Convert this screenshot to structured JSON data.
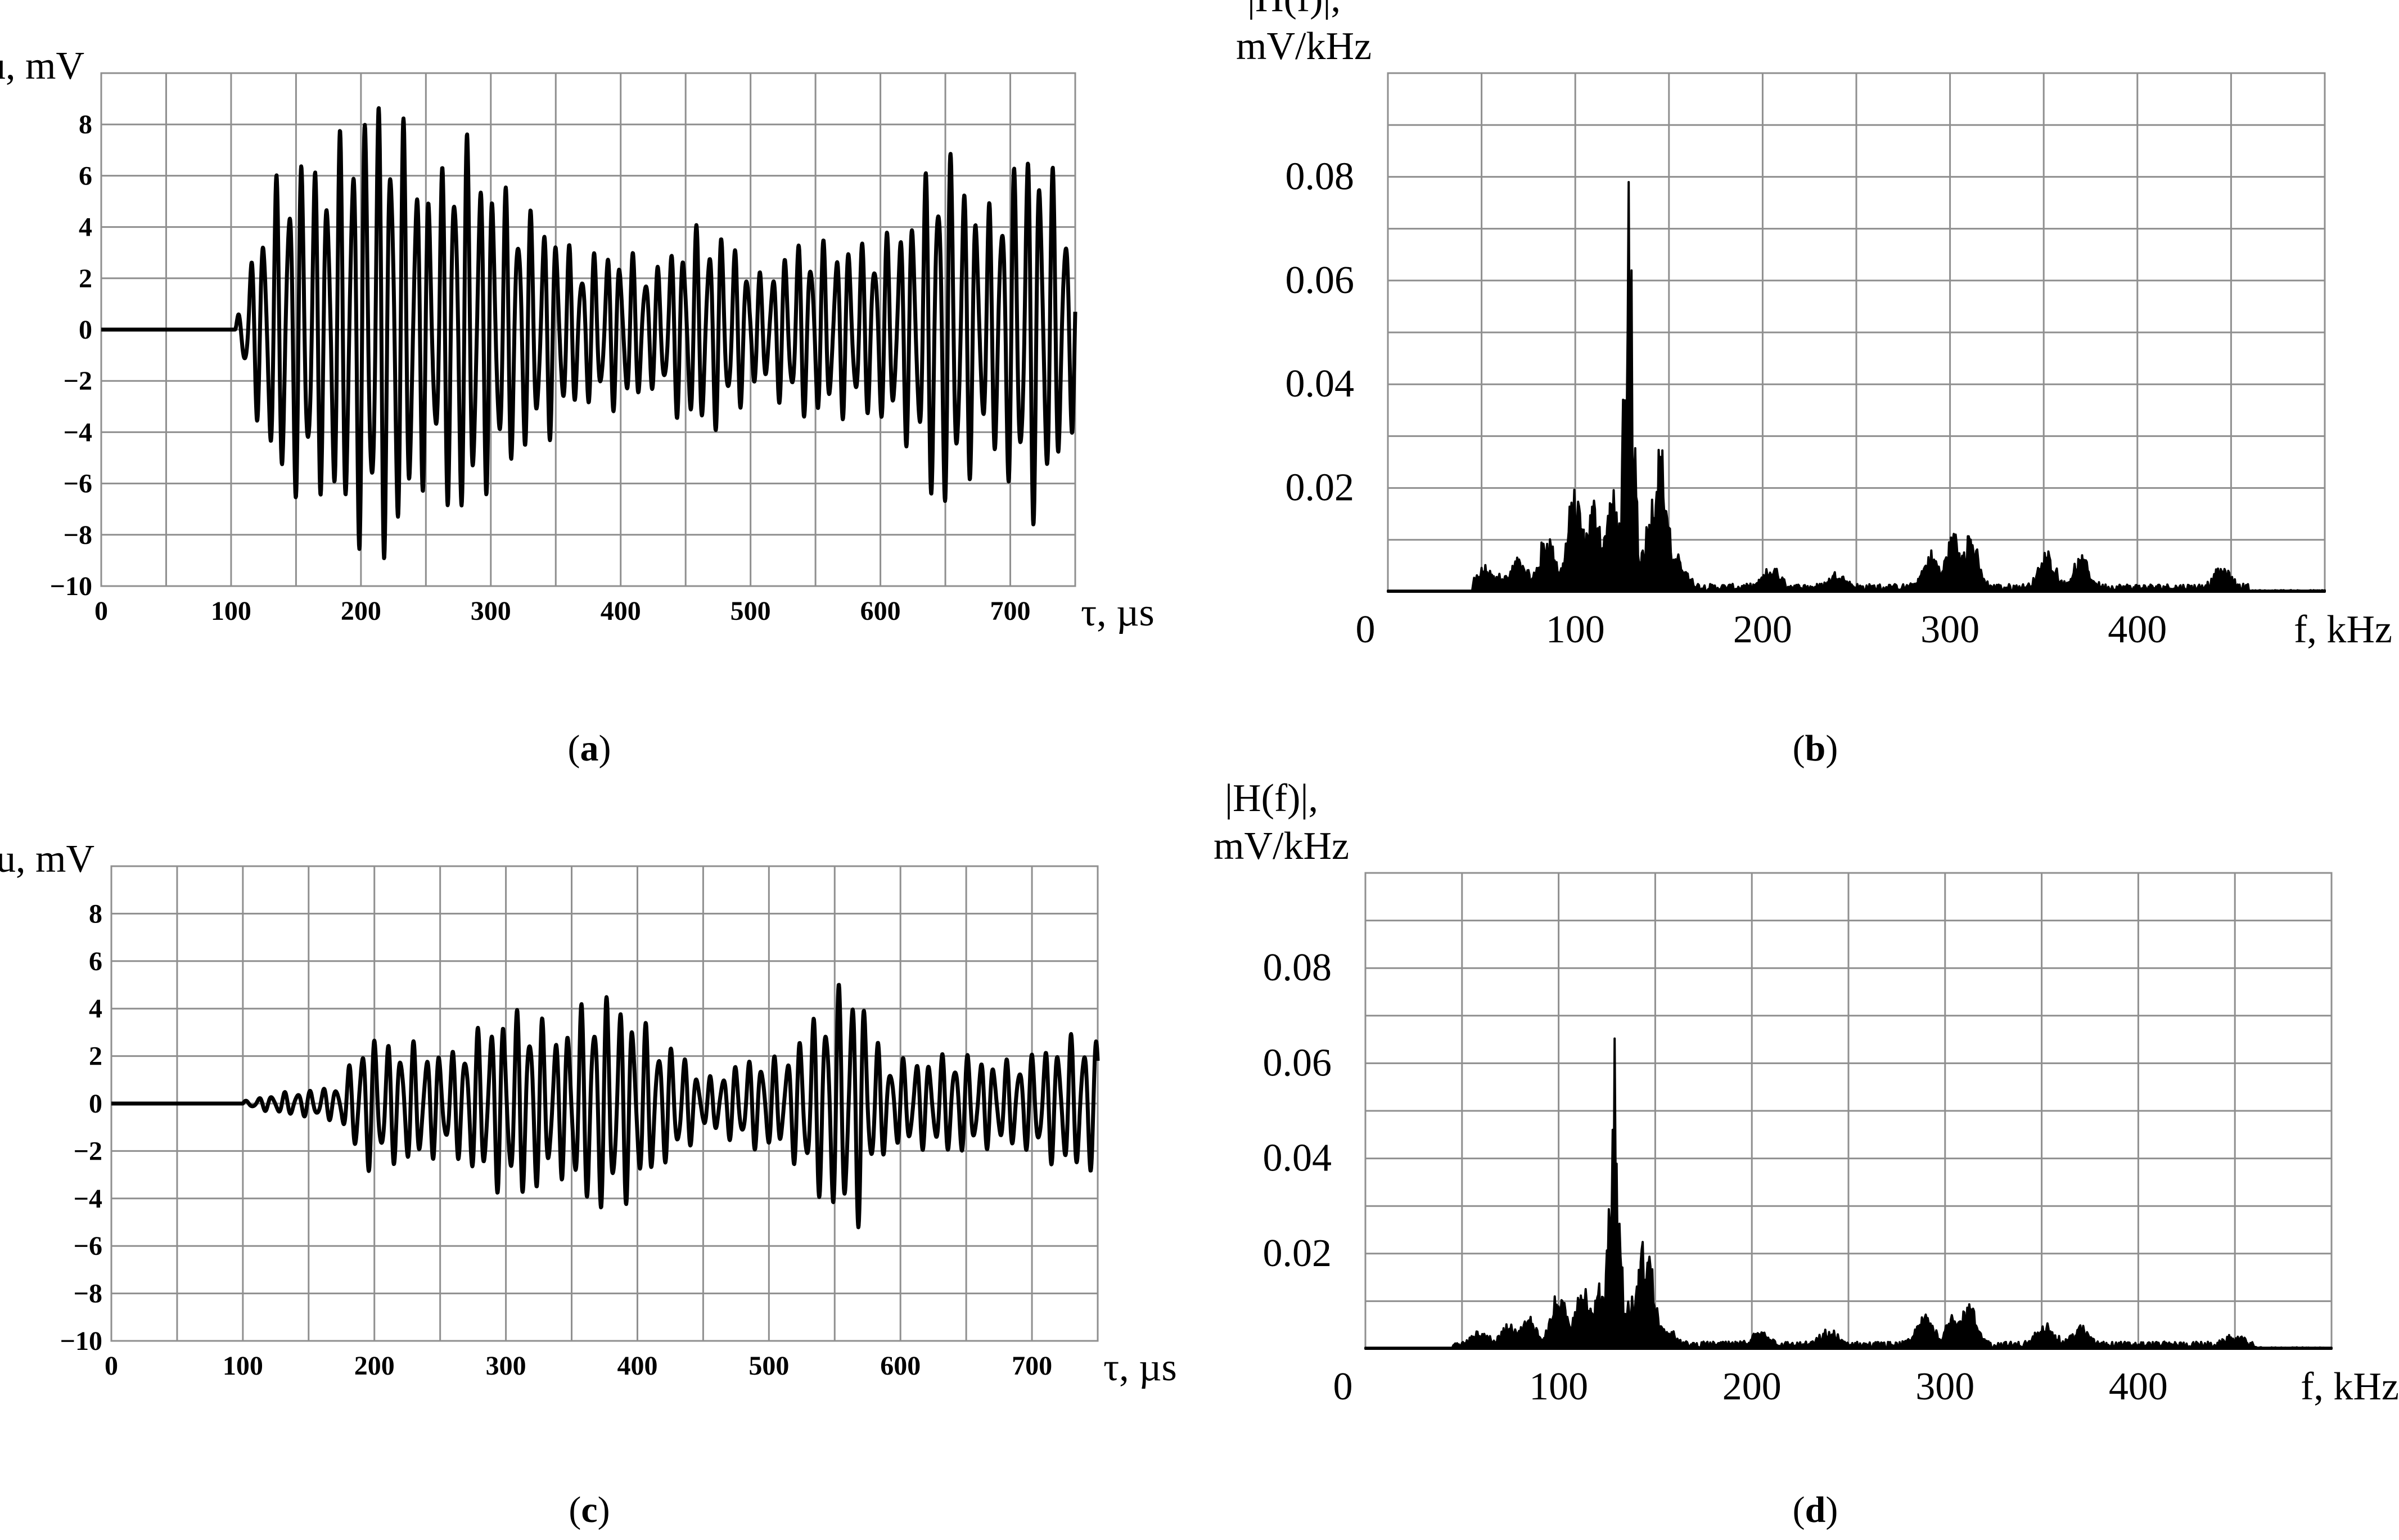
{
  "chart_data": [
    {
      "panel": "a",
      "type": "line",
      "caption": "a",
      "ylabel": "u, mV",
      "xlabel": "τ, µs",
      "xlim": [
        0,
        750
      ],
      "ylim": [
        -10,
        10
      ],
      "x_ticks": [
        "0",
        "100",
        "200",
        "300",
        "400",
        "500",
        "600",
        "700"
      ],
      "y_ticks": [
        "8",
        "6",
        "4",
        "2",
        "0",
        "−2",
        "−4",
        "−6",
        "−8",
        "−10"
      ],
      "grid": true,
      "signal": {
        "onset": 103,
        "envelope": [
          [
            103,
            0
          ],
          [
            115,
            4
          ],
          [
            130,
            7.5
          ],
          [
            150,
            8.2
          ],
          [
            170,
            9.5
          ],
          [
            200,
            7.8
          ],
          [
            240,
            7.5
          ],
          [
            270,
            8
          ],
          [
            300,
            5.5
          ],
          [
            340,
            6.5
          ],
          [
            370,
            4
          ],
          [
            400,
            3.5
          ],
          [
            450,
            3.5
          ],
          [
            500,
            3
          ],
          [
            560,
            3.5
          ],
          [
            600,
            5.5
          ],
          [
            630,
            6
          ],
          [
            640,
            7.8
          ],
          [
            700,
            6
          ],
          [
            720,
            6.2
          ],
          [
            750,
            4
          ]
        ],
        "period": 9.8
      }
    },
    {
      "panel": "b",
      "type": "area",
      "caption": "b",
      "ylabel_line1": "|H(f)|,",
      "ylabel_line2": "mV/kHz",
      "xlabel": "f, kHz",
      "xlim": [
        0,
        500
      ],
      "ylim": [
        0,
        0.1
      ],
      "x_ticks": [
        "0",
        "100",
        "200",
        "300",
        "400"
      ],
      "y_ticks": [
        "0.08",
        "0.06",
        "0.04",
        "0.02"
      ],
      "grid": true,
      "peaks": [
        [
          52,
          0.004
        ],
        [
          60,
          0.003
        ],
        [
          70,
          0.006
        ],
        [
          85,
          0.011
        ],
        [
          100,
          0.02
        ],
        [
          110,
          0.018
        ],
        [
          120,
          0.019
        ],
        [
          126,
          0.04
        ],
        [
          129,
          0.091
        ],
        [
          132,
          0.03
        ],
        [
          140,
          0.015
        ],
        [
          145,
          0.029
        ],
        [
          155,
          0.006
        ],
        [
          205,
          0.004
        ],
        [
          240,
          0.003
        ],
        [
          290,
          0.007
        ],
        [
          302,
          0.011
        ],
        [
          310,
          0.012
        ],
        [
          352,
          0.007
        ],
        [
          370,
          0.006
        ],
        [
          445,
          0.004
        ]
      ]
    },
    {
      "panel": "c",
      "type": "line",
      "caption": "c",
      "ylabel": "u, mV",
      "xlabel": "τ, µs",
      "xlim": [
        0,
        750
      ],
      "ylim": [
        -10,
        10
      ],
      "x_ticks": [
        "0",
        "100",
        "200",
        "300",
        "400",
        "500",
        "600",
        "700"
      ],
      "y_ticks": [
        "8",
        "6",
        "4",
        "2",
        "0",
        "−2",
        "−4",
        "−6",
        "−8",
        "−10"
      ],
      "grid": true,
      "signal": {
        "onset": 100,
        "envelope": [
          [
            100,
            0.1
          ],
          [
            150,
            0.6
          ],
          [
            175,
            1.2
          ],
          [
            190,
            3.5
          ],
          [
            200,
            4
          ],
          [
            240,
            3
          ],
          [
            300,
            3.2
          ],
          [
            340,
            4.3
          ],
          [
            400,
            4
          ],
          [
            430,
            3.5
          ],
          [
            450,
            1.5
          ],
          [
            500,
            2.5
          ],
          [
            570,
            4.6
          ],
          [
            580,
            3
          ],
          [
            620,
            1.8
          ],
          [
            700,
            3
          ],
          [
            750,
            3.2
          ]
        ],
        "period": 9.8
      }
    },
    {
      "panel": "d",
      "type": "area",
      "caption": "d",
      "ylabel_line1": "|H(f)|,",
      "ylabel_line2": "mV/kHz",
      "xlabel": "f, kHz",
      "xlim": [
        0,
        500
      ],
      "ylim": [
        0,
        0.1
      ],
      "x_ticks": [
        "0",
        "100",
        "200",
        "300",
        "400"
      ],
      "y_ticks": [
        "0.08",
        "0.06",
        "0.04",
        "0.02"
      ],
      "grid": true,
      "peaks": [
        [
          60,
          0.003
        ],
        [
          75,
          0.005
        ],
        [
          85,
          0.006
        ],
        [
          100,
          0.011
        ],
        [
          112,
          0.014
        ],
        [
          122,
          0.013
        ],
        [
          126,
          0.04
        ],
        [
          129,
          0.075
        ],
        [
          132,
          0.03
        ],
        [
          138,
          0.01
        ],
        [
          145,
          0.024
        ],
        [
          155,
          0.004
        ],
        [
          205,
          0.003
        ],
        [
          240,
          0.003
        ],
        [
          290,
          0.007
        ],
        [
          305,
          0.008
        ],
        [
          312,
          0.009
        ],
        [
          352,
          0.005
        ],
        [
          370,
          0.004
        ],
        [
          450,
          0.002
        ]
      ]
    }
  ]
}
